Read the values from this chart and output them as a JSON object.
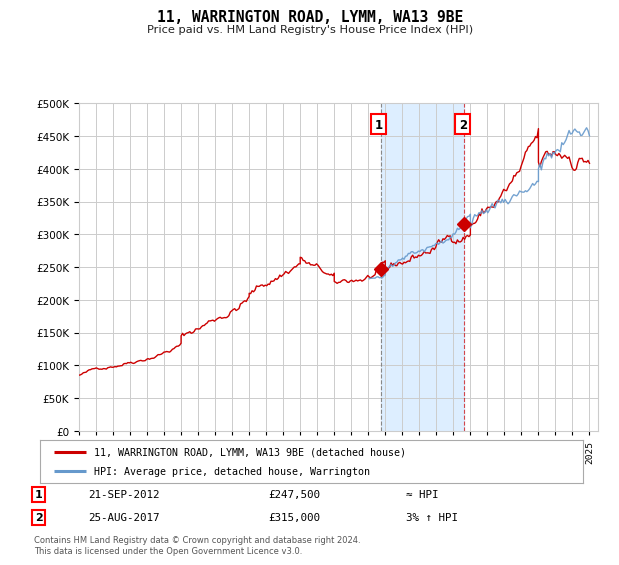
{
  "title": "11, WARRINGTON ROAD, LYMM, WA13 9BE",
  "subtitle": "Price paid vs. HM Land Registry's House Price Index (HPI)",
  "legend_line1": "11, WARRINGTON ROAD, LYMM, WA13 9BE (detached house)",
  "legend_line2": "HPI: Average price, detached house, Warrington",
  "annotation1_date": "21-SEP-2012",
  "annotation1_price": "£247,500",
  "annotation1_hpi": "≈ HPI",
  "annotation2_date": "25-AUG-2017",
  "annotation2_price": "£315,000",
  "annotation2_hpi": "3% ↑ HPI",
  "red_line_color": "#cc0000",
  "blue_line_color": "#6699cc",
  "background_color": "#ffffff",
  "plot_bg_color": "#ffffff",
  "highlight_bg_color": "#ddeeff",
  "grid_color": "#cccccc",
  "ylim": [
    0,
    500000
  ],
  "yticks": [
    0,
    50000,
    100000,
    150000,
    200000,
    250000,
    300000,
    350000,
    400000,
    450000,
    500000
  ],
  "sale1_year": 2012.72,
  "sale1_value": 247500,
  "sale2_year": 2017.65,
  "sale2_value": 315000,
  "footer_text": "Contains HM Land Registry data © Crown copyright and database right 2024.\nThis data is licensed under the Open Government Licence v3.0."
}
